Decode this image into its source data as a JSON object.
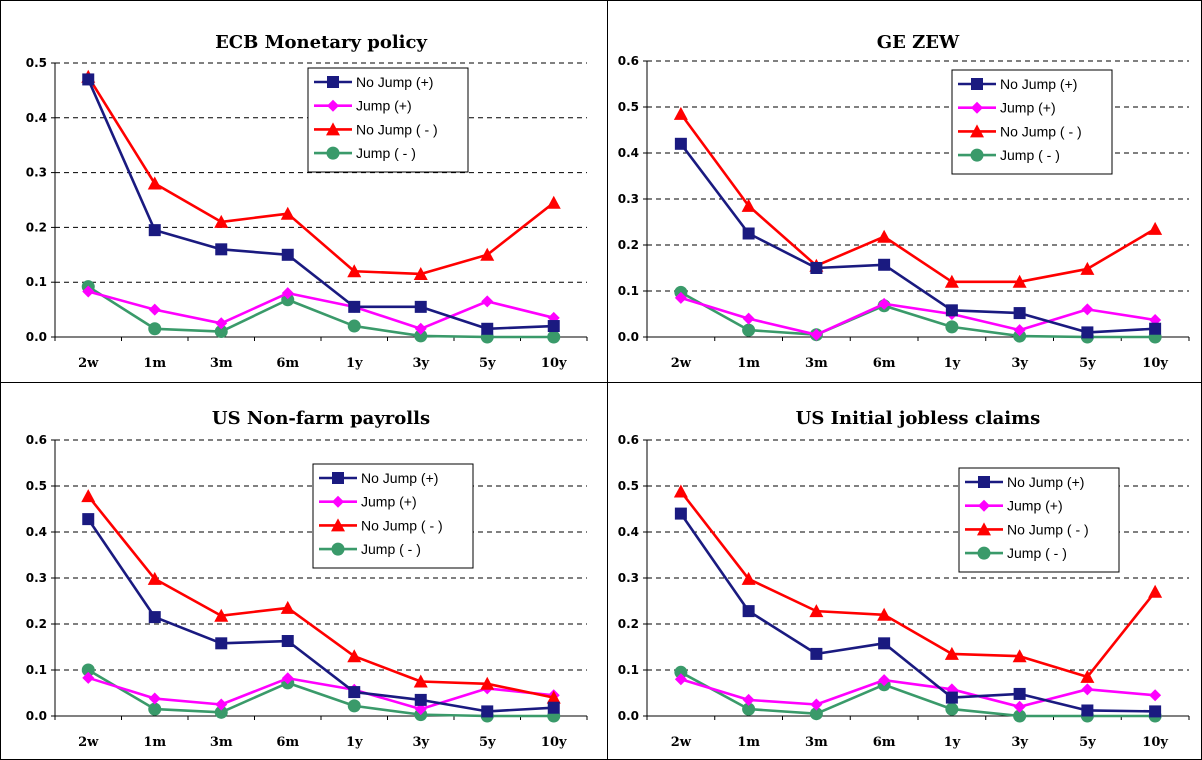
{
  "colors": {
    "no_jump_pos": "#1a1a80",
    "jump_pos": "#ff00ff",
    "no_jump_neg": "#ff0000",
    "jump_neg": "#3a9a6a"
  },
  "chart_data": [
    {
      "type": "line",
      "title": "ECB Monetary policy",
      "categories": [
        "2w",
        "1m",
        "3m",
        "6m",
        "1y",
        "3y",
        "5y",
        "10y"
      ],
      "ylim": [
        0,
        0.5
      ],
      "yticks": [
        "0.0",
        "0.1",
        "0.2",
        "0.3",
        "0.4",
        "0.5"
      ],
      "grid": true,
      "legend_position": "top-right",
      "series": [
        {
          "name": "No Jump (+)",
          "marker": "square",
          "values": [
            0.47,
            0.195,
            0.16,
            0.15,
            0.055,
            0.055,
            0.015,
            0.02
          ]
        },
        {
          "name": "Jump (+)",
          "marker": "diamond",
          "values": [
            0.083,
            0.05,
            0.025,
            0.08,
            0.055,
            0.015,
            0.065,
            0.035
          ]
        },
        {
          "name": "No Jump ( - )",
          "marker": "triangle",
          "values": [
            0.475,
            0.28,
            0.21,
            0.225,
            0.12,
            0.115,
            0.15,
            0.245
          ]
        },
        {
          "name": "Jump ( - )",
          "marker": "circle",
          "values": [
            0.092,
            0.015,
            0.01,
            0.068,
            0.02,
            0.002,
            0.0,
            0.0
          ]
        }
      ]
    },
    {
      "type": "line",
      "title": "GE ZEW",
      "categories": [
        "2w",
        "1m",
        "3m",
        "6m",
        "1y",
        "3y",
        "5y",
        "10y"
      ],
      "ylim": [
        0,
        0.6
      ],
      "yticks": [
        "0.0",
        "0.1",
        "0.2",
        "0.3",
        "0.4",
        "0.5",
        "0.6"
      ],
      "grid": true,
      "legend_position": "top-right",
      "series": [
        {
          "name": "No Jump (+)",
          "marker": "square",
          "values": [
            0.42,
            0.225,
            0.15,
            0.157,
            0.058,
            0.052,
            0.01,
            0.018
          ]
        },
        {
          "name": "Jump (+)",
          "marker": "diamond",
          "values": [
            0.085,
            0.04,
            0.005,
            0.072,
            0.05,
            0.015,
            0.06,
            0.037
          ]
        },
        {
          "name": "No Jump ( - )",
          "marker": "triangle",
          "values": [
            0.485,
            0.285,
            0.155,
            0.218,
            0.12,
            0.12,
            0.148,
            0.235
          ]
        },
        {
          "name": "Jump ( - )",
          "marker": "circle",
          "values": [
            0.097,
            0.015,
            0.005,
            0.068,
            0.022,
            0.002,
            0.0,
            0.0
          ]
        }
      ]
    },
    {
      "type": "line",
      "title": "US Non-farm payrolls",
      "categories": [
        "2w",
        "1m",
        "3m",
        "6m",
        "1y",
        "3y",
        "5y",
        "10y"
      ],
      "ylim": [
        0,
        0.6
      ],
      "yticks": [
        "0.0",
        "0.1",
        "0.2",
        "0.3",
        "0.4",
        "0.5",
        "0.6"
      ],
      "grid": true,
      "legend_position": "top-right",
      "series": [
        {
          "name": "No Jump (+)",
          "marker": "square",
          "values": [
            0.428,
            0.215,
            0.158,
            0.163,
            0.052,
            0.035,
            0.01,
            0.018
          ]
        },
        {
          "name": "Jump (+)",
          "marker": "diamond",
          "values": [
            0.083,
            0.038,
            0.025,
            0.082,
            0.057,
            0.015,
            0.06,
            0.045
          ]
        },
        {
          "name": "No Jump ( - )",
          "marker": "triangle",
          "values": [
            0.478,
            0.298,
            0.218,
            0.235,
            0.13,
            0.075,
            0.07,
            0.04
          ]
        },
        {
          "name": "Jump ( - )",
          "marker": "circle",
          "values": [
            0.1,
            0.015,
            0.008,
            0.072,
            0.022,
            0.003,
            0.0,
            0.0
          ]
        }
      ]
    },
    {
      "type": "line",
      "title": "US Initial jobless claims",
      "categories": [
        "2w",
        "1m",
        "3m",
        "6m",
        "1y",
        "3y",
        "5y",
        "10y"
      ],
      "ylim": [
        0,
        0.6
      ],
      "yticks": [
        "0.0",
        "0.1",
        "0.2",
        "0.3",
        "0.4",
        "0.5",
        "0.6"
      ],
      "grid": true,
      "legend_position": "top-right",
      "series": [
        {
          "name": "No Jump (+)",
          "marker": "square",
          "values": [
            0.44,
            0.228,
            0.135,
            0.158,
            0.04,
            0.048,
            0.012,
            0.01
          ]
        },
        {
          "name": "Jump (+)",
          "marker": "diamond",
          "values": [
            0.08,
            0.035,
            0.025,
            0.078,
            0.058,
            0.02,
            0.058,
            0.045
          ]
        },
        {
          "name": "No Jump ( - )",
          "marker": "triangle",
          "values": [
            0.488,
            0.298,
            0.228,
            0.22,
            0.135,
            0.13,
            0.085,
            0.27
          ]
        },
        {
          "name": "Jump ( - )",
          "marker": "circle",
          "values": [
            0.095,
            0.015,
            0.005,
            0.068,
            0.015,
            0.0,
            0.0,
            0.0
          ]
        }
      ]
    }
  ]
}
